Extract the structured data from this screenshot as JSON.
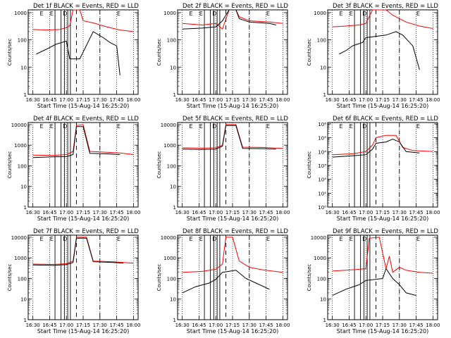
{
  "chart_data": [
    {
      "type": "line",
      "title": "Det 1f BLACK = Events, RED = LLD",
      "ylabel": "Counts/sec",
      "xlabel": "Start Time (15-Aug-14 16:25:20)",
      "x_ticks": [
        "16:30",
        "16:45",
        "17:00",
        "17:15",
        "17:30",
        "17:45",
        "18:00"
      ],
      "y_ticks": [
        "1",
        "10",
        "100",
        "1000"
      ],
      "yscale": "log",
      "ylim": [
        1,
        1300
      ],
      "ylim_log": [
        0,
        3.1
      ],
      "xlim": [
        16.43,
        18.07
      ],
      "markers": [
        "E",
        "E",
        "D",
        "E"
      ],
      "series": [
        {
          "color": "#ff0000",
          "points": [
            [
              16.5,
              240
            ],
            [
              16.7,
              230
            ],
            [
              16.9,
              240
            ],
            [
              17.0,
              280
            ],
            [
              17.05,
              330
            ],
            [
              17.1,
              1300
            ],
            [
              17.2,
              1300
            ],
            [
              17.25,
              500
            ],
            [
              17.4,
              420
            ],
            [
              17.6,
              300
            ],
            [
              17.8,
              230
            ],
            [
              18.0,
              200
            ]
          ]
        },
        {
          "color": "#000000",
          "points": [
            [
              16.55,
              30
            ],
            [
              16.7,
              45
            ],
            [
              16.85,
              70
            ],
            [
              17.0,
              90
            ],
            [
              17.05,
              20
            ],
            [
              17.2,
              20
            ],
            [
              17.4,
              200
            ],
            [
              17.55,
              120
            ],
            [
              17.65,
              80
            ],
            [
              17.75,
              60
            ],
            [
              17.8,
              5
            ]
          ]
        }
      ]
    },
    {
      "type": "line",
      "title": "Det 2f BLACK = Events, RED = LLD",
      "ylabel": "Counts/sec",
      "xlabel": "Start Time (15-Aug-14 16:25:20)",
      "x_ticks": [
        "16:30",
        "16:45",
        "17:00",
        "17:15",
        "17:30",
        "17:45",
        "18:00"
      ],
      "y_ticks": [
        "1",
        "10",
        "100",
        "1000"
      ],
      "yscale": "log",
      "ylim": [
        1,
        1300
      ],
      "ylim_log": [
        0,
        3.1
      ],
      "xlim": [
        16.43,
        18.07
      ],
      "markers": [
        "E",
        "E",
        "D",
        "E"
      ],
      "series": [
        {
          "color": "#ff0000",
          "points": [
            [
              16.5,
              400
            ],
            [
              16.8,
              350
            ],
            [
              17.0,
              400
            ],
            [
              17.1,
              250
            ],
            [
              17.2,
              1300
            ],
            [
              17.3,
              1300
            ],
            [
              17.35,
              700
            ],
            [
              17.5,
              500
            ],
            [
              17.8,
              450
            ],
            [
              18.0,
              400
            ]
          ]
        },
        {
          "color": "#000000",
          "points": [
            [
              16.5,
              250
            ],
            [
              16.8,
              270
            ],
            [
              17.0,
              300
            ],
            [
              17.1,
              500
            ],
            [
              17.2,
              1300
            ],
            [
              17.3,
              1300
            ],
            [
              17.35,
              600
            ],
            [
              17.5,
              450
            ],
            [
              17.8,
              400
            ],
            [
              17.9,
              350
            ]
          ]
        }
      ]
    },
    {
      "type": "line",
      "title": "Det 3f BLACK = Events, RED = LLD",
      "ylabel": "Counts/sec",
      "xlabel": "Start Time (15-Aug-14 16:25:20)",
      "x_ticks": [
        "16:30",
        "16:45",
        "17:00",
        "17:15",
        "17:30",
        "17:45",
        "18:00"
      ],
      "y_ticks": [
        "1",
        "10",
        "100",
        "1000"
      ],
      "yscale": "log",
      "ylim": [
        1,
        1300
      ],
      "ylim_log": [
        0,
        3.1
      ],
      "xlim": [
        16.43,
        18.07
      ],
      "markers": [
        "E",
        "E",
        "D",
        "E"
      ],
      "series": [
        {
          "color": "#ff0000",
          "points": [
            [
              16.5,
              300
            ],
            [
              16.7,
              320
            ],
            [
              16.9,
              350
            ],
            [
              17.0,
              400
            ],
            [
              17.1,
              1300
            ],
            [
              17.3,
              1300
            ],
            [
              17.4,
              800
            ],
            [
              17.6,
              450
            ],
            [
              17.8,
              320
            ],
            [
              18.0,
              260
            ]
          ]
        },
        {
          "color": "#000000",
          "points": [
            [
              16.6,
              30
            ],
            [
              16.7,
              40
            ],
            [
              16.8,
              60
            ],
            [
              16.95,
              80
            ],
            [
              17.0,
              120
            ],
            [
              17.3,
              150
            ],
            [
              17.45,
              200
            ],
            [
              17.55,
              150
            ],
            [
              17.7,
              60
            ],
            [
              17.8,
              8
            ]
          ]
        }
      ]
    },
    {
      "type": "line",
      "title": "Det 4f BLACK = Events, RED = LLD",
      "ylabel": "Counts/sec",
      "xlabel": "Start Time (15-Aug-14 16:25:20)",
      "x_ticks": [
        "16:30",
        "16:45",
        "17:00",
        "17:15",
        "17:30",
        "17:45",
        "18:00"
      ],
      "y_ticks": [
        "1",
        "10",
        "100",
        "1000",
        "10000"
      ],
      "yscale": "log",
      "ylim": [
        1,
        13000
      ],
      "ylim_log": [
        0,
        4.1
      ],
      "xlim": [
        16.43,
        18.07
      ],
      "markers": [
        "E",
        "E",
        "D",
        "E"
      ],
      "series": [
        {
          "color": "#ff0000",
          "points": [
            [
              16.5,
              330
            ],
            [
              16.8,
              320
            ],
            [
              17.0,
              350
            ],
            [
              17.1,
              500
            ],
            [
              17.15,
              9000
            ],
            [
              17.25,
              10000
            ],
            [
              17.35,
              500
            ],
            [
              17.6,
              450
            ],
            [
              17.8,
              420
            ],
            [
              18.0,
              350
            ]
          ]
        },
        {
          "color": "#000000",
          "points": [
            [
              16.5,
              250
            ],
            [
              16.8,
              270
            ],
            [
              17.0,
              280
            ],
            [
              17.1,
              350
            ],
            [
              17.15,
              8000
            ],
            [
              17.25,
              8000
            ],
            [
              17.35,
              400
            ],
            [
              17.6,
              380
            ],
            [
              17.8,
              350
            ]
          ]
        }
      ]
    },
    {
      "type": "line",
      "title": "Det 5f BLACK = Events, RED = LLD",
      "ylabel": "Counts/sec",
      "xlabel": "Start Time (15-Aug-14 16:25:20)",
      "x_ticks": [
        "16:30",
        "16:45",
        "17:00",
        "17:15",
        "17:30",
        "17:45",
        "18:00"
      ],
      "y_ticks": [
        "1",
        "10",
        "100",
        "1000",
        "10000"
      ],
      "yscale": "log",
      "ylim": [
        1,
        13000
      ],
      "ylim_log": [
        0,
        4.1
      ],
      "xlim": [
        16.43,
        18.07
      ],
      "markers": [
        "E",
        "E",
        "D",
        "E"
      ],
      "series": [
        {
          "color": "#ff0000",
          "points": [
            [
              16.5,
              750
            ],
            [
              16.8,
              720
            ],
            [
              17.0,
              750
            ],
            [
              17.1,
              1000
            ],
            [
              17.15,
              10000
            ],
            [
              17.3,
              10000
            ],
            [
              17.4,
              800
            ],
            [
              17.7,
              780
            ],
            [
              18.0,
              700
            ]
          ]
        },
        {
          "color": "#000000",
          "points": [
            [
              16.5,
              650
            ],
            [
              16.8,
              620
            ],
            [
              17.0,
              650
            ],
            [
              17.1,
              900
            ],
            [
              17.15,
              9000
            ],
            [
              17.3,
              9000
            ],
            [
              17.4,
              700
            ],
            [
              17.7,
              680
            ],
            [
              17.9,
              650
            ]
          ]
        }
      ]
    },
    {
      "type": "line",
      "title": "Det 6f BLACK = Events, RED = LLD",
      "ylabel": "Counts/sec",
      "xlabel": "Start Time (15-Aug-14 16:25:20)",
      "x_ticks": [
        "16:30",
        "16:45",
        "17:00",
        "17:15",
        "17:30",
        "17:45",
        "18:00"
      ],
      "y_ticks": [
        "10⁰",
        "10¹",
        "10²",
        "10³",
        "10⁴",
        "10⁵",
        "10⁶"
      ],
      "yscale": "log",
      "ylim": [
        1,
        1000000
      ],
      "ylim_log": [
        0,
        6.1
      ],
      "xlim": [
        16.43,
        18.07
      ],
      "markers": [
        "E",
        "E",
        "D",
        "E"
      ],
      "series": [
        {
          "color": "#ff0000",
          "points": [
            [
              16.5,
              6000
            ],
            [
              16.8,
              7000
            ],
            [
              17.0,
              10000
            ],
            [
              17.1,
              30000
            ],
            [
              17.15,
              100000
            ],
            [
              17.3,
              150000
            ],
            [
              17.45,
              150000
            ],
            [
              17.55,
              20000
            ],
            [
              17.7,
              12000
            ],
            [
              18.0,
              10000
            ]
          ]
        },
        {
          "color": "#000000",
          "points": [
            [
              16.5,
              4000
            ],
            [
              16.8,
              5000
            ],
            [
              17.0,
              6000
            ],
            [
              17.1,
              15000
            ],
            [
              17.15,
              40000
            ],
            [
              17.3,
              50000
            ],
            [
              17.4,
              80000
            ],
            [
              17.5,
              50000
            ],
            [
              17.6,
              10000
            ],
            [
              17.8,
              8000
            ]
          ]
        }
      ]
    },
    {
      "type": "line",
      "title": "Det 7f BLACK = Events, RED = LLD",
      "ylabel": "Counts/sec",
      "xlabel": "Start Time (15-Aug-14 16:25:20)",
      "x_ticks": [
        "16:30",
        "16:45",
        "17:00",
        "17:15",
        "17:30",
        "17:45",
        "18:00"
      ],
      "y_ticks": [
        "1",
        "10",
        "100",
        "1000",
        "10000"
      ],
      "yscale": "log",
      "ylim": [
        1,
        13000
      ],
      "ylim_log": [
        0,
        4.1
      ],
      "xlim": [
        16.43,
        18.07
      ],
      "markers": [
        "E",
        "E",
        "D",
        "E"
      ],
      "series": [
        {
          "color": "#ff0000",
          "points": [
            [
              16.5,
              500
            ],
            [
              16.8,
              480
            ],
            [
              17.0,
              520
            ],
            [
              17.1,
              700
            ],
            [
              17.15,
              10000
            ],
            [
              17.3,
              10000
            ],
            [
              17.4,
              700
            ],
            [
              17.7,
              650
            ],
            [
              18.0,
              550
            ]
          ]
        },
        {
          "color": "#000000",
          "points": [
            [
              16.5,
              450
            ],
            [
              16.8,
              430
            ],
            [
              17.0,
              470
            ],
            [
              17.1,
              600
            ],
            [
              17.15,
              9000
            ],
            [
              17.3,
              9000
            ],
            [
              17.4,
              650
            ],
            [
              17.7,
              600
            ],
            [
              17.85,
              550
            ]
          ]
        }
      ]
    },
    {
      "type": "line",
      "title": "Det 8f BLACK = Events, RED = LLD",
      "ylabel": "Counts/sec",
      "xlabel": "Start Time (15-Aug-14 16:25:20)",
      "x_ticks": [
        "16:30",
        "16:45",
        "17:00",
        "17:15",
        "17:30",
        "17:45",
        "18:00"
      ],
      "y_ticks": [
        "1",
        "10",
        "100",
        "1000",
        "10000"
      ],
      "yscale": "log",
      "ylim": [
        1,
        13000
      ],
      "ylim_log": [
        0,
        4.1
      ],
      "xlim": [
        16.43,
        18.07
      ],
      "markers": [
        "E",
        "E",
        "D",
        "E"
      ],
      "series": [
        {
          "color": "#ff0000",
          "points": [
            [
              16.5,
              200
            ],
            [
              16.8,
              220
            ],
            [
              17.0,
              280
            ],
            [
              17.1,
              500
            ],
            [
              17.15,
              10000
            ],
            [
              17.25,
              10000
            ],
            [
              17.35,
              700
            ],
            [
              17.5,
              350
            ],
            [
              17.7,
              260
            ],
            [
              18.0,
              200
            ]
          ]
        },
        {
          "color": "#000000",
          "points": [
            [
              16.5,
              20
            ],
            [
              16.7,
              40
            ],
            [
              16.9,
              60
            ],
            [
              17.0,
              90
            ],
            [
              17.1,
              200
            ],
            [
              17.3,
              250
            ],
            [
              17.45,
              100
            ],
            [
              17.6,
              60
            ],
            [
              17.8,
              30
            ]
          ]
        }
      ]
    },
    {
      "type": "line",
      "title": "Det 9f BLACK = Events, RED = LLD",
      "ylabel": "Counts/sec",
      "xlabel": "Start Time (15-Aug-14 16:25:20)",
      "x_ticks": [
        "16:30",
        "16:45",
        "17:00",
        "17:15",
        "17:30",
        "17:45",
        "18:00"
      ],
      "y_ticks": [
        "1",
        "10",
        "100",
        "1000",
        "10000"
      ],
      "yscale": "log",
      "ylim": [
        1,
        13000
      ],
      "ylim_log": [
        0,
        4.1
      ],
      "xlim": [
        16.43,
        18.07
      ],
      "markers": [
        "E",
        "E",
        "D",
        "E"
      ],
      "series": [
        {
          "color": "#ff0000",
          "points": [
            [
              16.5,
              230
            ],
            [
              16.7,
              250
            ],
            [
              16.9,
              280
            ],
            [
              17.0,
              300
            ],
            [
              17.05,
              9000
            ],
            [
              17.2,
              10000
            ],
            [
              17.3,
              300
            ],
            [
              17.35,
              1200
            ],
            [
              17.4,
              200
            ],
            [
              17.5,
              350
            ],
            [
              17.6,
              250
            ],
            [
              17.8,
              200
            ],
            [
              18.0,
              180
            ]
          ]
        },
        {
          "color": "#000000",
          "points": [
            [
              16.5,
              15
            ],
            [
              16.7,
              30
            ],
            [
              16.9,
              50
            ],
            [
              17.0,
              80
            ],
            [
              17.25,
              100
            ],
            [
              17.3,
              300
            ],
            [
              17.4,
              100
            ],
            [
              17.5,
              50
            ],
            [
              17.6,
              20
            ],
            [
              17.75,
              15
            ]
          ]
        }
      ]
    }
  ]
}
